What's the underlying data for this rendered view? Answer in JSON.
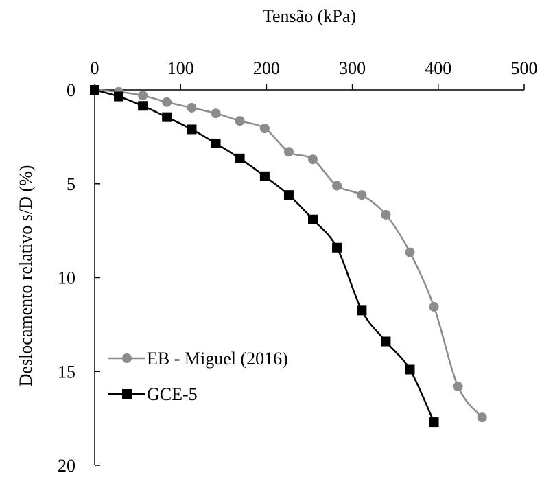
{
  "chart_data": {
    "type": "line",
    "title": "",
    "xlabel": "Tensão (kPa)",
    "ylabel": "Deslocamento relativo s/D (%)",
    "xlim": [
      0,
      500
    ],
    "ylim": [
      0,
      20
    ],
    "y_inverted": true,
    "x_axis_position": "top",
    "x_ticks": [
      0,
      100,
      200,
      300,
      400,
      500
    ],
    "y_ticks": [
      0,
      5,
      10,
      15,
      20
    ],
    "grid": false,
    "legend_position": "bottom-left",
    "series": [
      {
        "name": "EB - Miguel (2016)",
        "color": "#8c8c8c",
        "marker": "circle",
        "x": [
          0,
          28,
          56,
          84,
          113,
          141,
          169,
          198,
          226,
          254,
          282,
          311,
          339,
          367,
          395,
          423,
          451
        ],
        "y": [
          0,
          0.1,
          0.3,
          0.65,
          0.95,
          1.25,
          1.65,
          2.05,
          3.3,
          3.7,
          5.1,
          5.6,
          6.65,
          8.65,
          11.55,
          15.8,
          17.45
        ]
      },
      {
        "name": "GCE-5",
        "color": "#000000",
        "marker": "square",
        "x": [
          0,
          28,
          56,
          84,
          113,
          141,
          169,
          198,
          226,
          254,
          282,
          311,
          339,
          367,
          395
        ],
        "y": [
          0,
          0.35,
          0.85,
          1.45,
          2.1,
          2.85,
          3.65,
          4.6,
          5.6,
          6.9,
          8.4,
          11.75,
          13.4,
          14.9,
          17.7
        ]
      }
    ]
  }
}
